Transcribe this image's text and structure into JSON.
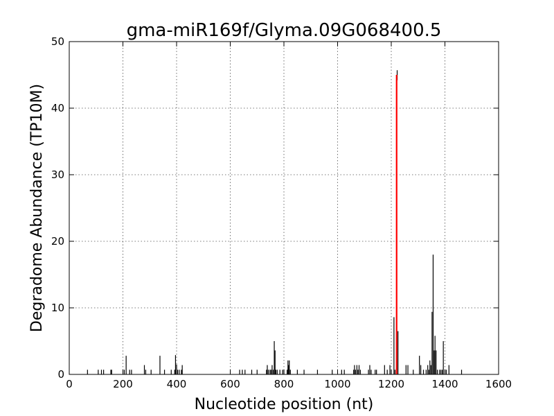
{
  "chart_data": {
    "type": "bar",
    "title": "gma-miR169f/Glyma.09G068400.5",
    "xlabel": "Nucleotide position (nt)",
    "ylabel": "Degradome Abundance (TP10M)",
    "xlim": [
      0,
      1600
    ],
    "ylim": [
      0,
      50
    ],
    "xticks": [
      0,
      200,
      400,
      600,
      800,
      1000,
      1200,
      1400,
      1600
    ],
    "yticks": [
      0,
      10,
      20,
      30,
      40,
      50
    ],
    "grid": true,
    "colors": {
      "background_peaks": "#000000",
      "target_peak": "#ff0000"
    },
    "series": [
      {
        "values": [
          [
            68,
            0.7
          ],
          [
            108,
            0.7
          ],
          [
            120,
            0.7
          ],
          [
            128,
            0.7
          ],
          [
            155,
            0.7
          ],
          [
            158,
            0.7
          ],
          [
            205,
            0.7
          ],
          [
            212,
            2.8
          ],
          [
            225,
            0.7
          ],
          [
            232,
            0.7
          ],
          [
            280,
            1.4
          ],
          [
            285,
            0.7
          ],
          [
            305,
            0.7
          ],
          [
            338,
            2.8
          ],
          [
            355,
            0.7
          ],
          [
            380,
            0.7
          ],
          [
            393,
            0.7
          ],
          [
            396,
            2.9
          ],
          [
            400,
            1.5
          ],
          [
            404,
            0.7
          ],
          [
            410,
            0.7
          ],
          [
            418,
            0.7
          ],
          [
            421,
            1.4
          ],
          [
            635,
            0.7
          ],
          [
            645,
            0.7
          ],
          [
            655,
            0.7
          ],
          [
            680,
            0.7
          ],
          [
            700,
            0.7
          ],
          [
            735,
            0.7
          ],
          [
            738,
            1.4
          ],
          [
            742,
            0.7
          ],
          [
            748,
            0.7
          ],
          [
            752,
            0.7
          ],
          [
            756,
            1.4
          ],
          [
            760,
            0.7
          ],
          [
            764,
            5.0
          ],
          [
            767,
            3.6
          ],
          [
            770,
            0.7
          ],
          [
            775,
            0.7
          ],
          [
            785,
            0.7
          ],
          [
            795,
            0.7
          ],
          [
            800,
            0.7
          ],
          [
            812,
            0.7
          ],
          [
            815,
            2.1
          ],
          [
            818,
            1.4
          ],
          [
            820,
            2.1
          ],
          [
            824,
            0.7
          ],
          [
            850,
            0.7
          ],
          [
            875,
            0.7
          ],
          [
            925,
            0.7
          ],
          [
            980,
            0.7
          ],
          [
            1015,
            0.7
          ],
          [
            1025,
            0.7
          ],
          [
            1060,
            0.7
          ],
          [
            1063,
            1.4
          ],
          [
            1067,
            0.7
          ],
          [
            1072,
            1.4
          ],
          [
            1076,
            0.7
          ],
          [
            1080,
            1.4
          ],
          [
            1085,
            0.7
          ],
          [
            1115,
            0.7
          ],
          [
            1120,
            1.4
          ],
          [
            1125,
            0.7
          ],
          [
            1140,
            0.7
          ],
          [
            1145,
            0.7
          ],
          [
            1175,
            1.4
          ],
          [
            1185,
            0.7
          ],
          [
            1195,
            1.4
          ],
          [
            1200,
            0.7
          ],
          [
            1210,
            8.6
          ],
          [
            1214,
            0.7
          ],
          [
            1225,
            6.5
          ],
          [
            1255,
            1.4
          ],
          [
            1262,
            1.4
          ],
          [
            1282,
            0.7
          ],
          [
            1305,
            2.8
          ],
          [
            1310,
            1.4
          ],
          [
            1320,
            0.7
          ],
          [
            1330,
            0.7
          ],
          [
            1336,
            1.4
          ],
          [
            1340,
            0.7
          ],
          [
            1344,
            2.1
          ],
          [
            1348,
            1.4
          ],
          [
            1352,
            9.4
          ],
          [
            1356,
            18.0
          ],
          [
            1360,
            3.6
          ],
          [
            1363,
            5.8
          ],
          [
            1367,
            3.6
          ],
          [
            1372,
            0.7
          ],
          [
            1380,
            0.7
          ],
          [
            1385,
            0.7
          ],
          [
            1390,
            0.7
          ],
          [
            1394,
            5.0
          ],
          [
            1400,
            0.7
          ],
          [
            1405,
            0.7
          ],
          [
            1415,
            1.4
          ],
          [
            1462,
            0.7
          ]
        ]
      },
      {
        "values": [
          [
            1220,
            45.0
          ]
        ]
      }
    ],
    "annotations": [
      {
        "x": 1222,
        "y": 45.7
      }
    ]
  }
}
